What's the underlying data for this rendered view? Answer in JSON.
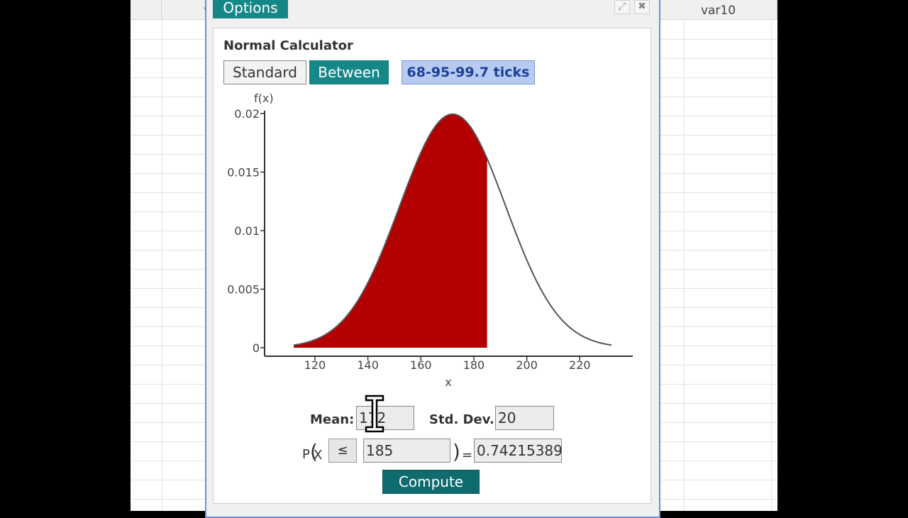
{
  "spreadsheet": {
    "columns": [
      "",
      "va",
      "var10"
    ]
  },
  "dialog": {
    "title": "Options",
    "expand_icon": "expand-icon",
    "close_icon": "close-icon"
  },
  "calculator": {
    "title": "Normal Calculator",
    "tabs": [
      {
        "label": "Standard",
        "active": false
      },
      {
        "label": "Between",
        "active": true
      },
      {
        "label": "68-95-99.7 ticks",
        "active": false
      }
    ],
    "mean_label": "Mean:",
    "mean_value": "172",
    "sd_label": "Std. Dev.:",
    "sd_value": "20",
    "prob_prefix_p": "P",
    "prob_paren_open": "(",
    "prob_var": "X",
    "operator": "≤",
    "x_value": "185",
    "prob_paren_close": ")",
    "equals": "=",
    "result": "0.74215389",
    "compute_label": "Compute"
  },
  "chart_data": {
    "type": "area",
    "distribution": "normal",
    "mean": 172,
    "sd": 20,
    "shaded_upper_bound": 185,
    "x_range": [
      112,
      232
    ],
    "ylabel": "f(x)",
    "xlabel": "x",
    "ylim": [
      0,
      0.02
    ],
    "xticks": [
      120,
      140,
      160,
      180,
      200,
      220
    ],
    "yticks": [
      {
        "value": 0,
        "label": "0"
      },
      {
        "value": 0.005,
        "label": "0.005"
      },
      {
        "value": 0.01,
        "label": "0.01"
      },
      {
        "value": 0.015,
        "label": "0.015"
      },
      {
        "value": 0.02,
        "label": "0.02"
      }
    ],
    "fill_color": "#b30000",
    "curve_color": "#555555"
  }
}
